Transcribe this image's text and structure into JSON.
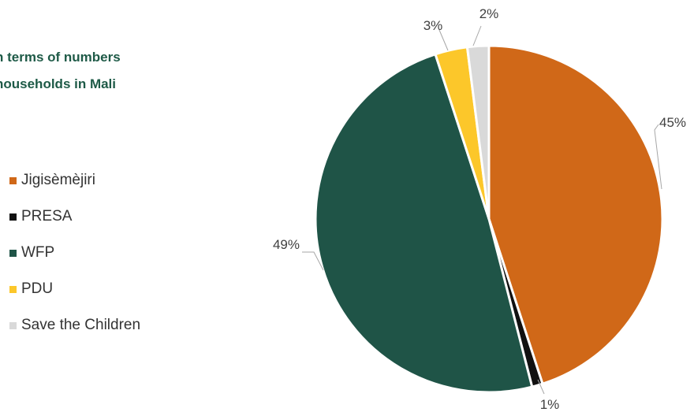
{
  "chart_data": {
    "type": "pie",
    "title_lines": [
      "n terms of numbers",
      "households in Mali"
    ],
    "categories": [
      "Jigisèmèjiri",
      "PRESA",
      "WFP",
      "PDU",
      "Save the Children"
    ],
    "values": [
      45,
      1,
      49,
      3,
      2
    ],
    "labels": [
      "45%",
      "1%",
      "49%",
      "3%",
      "2%"
    ],
    "colors": [
      "#d06818",
      "#111111",
      "#1f5447",
      "#fcc72a",
      "#d9d9d9"
    ],
    "legend_position": "left"
  }
}
